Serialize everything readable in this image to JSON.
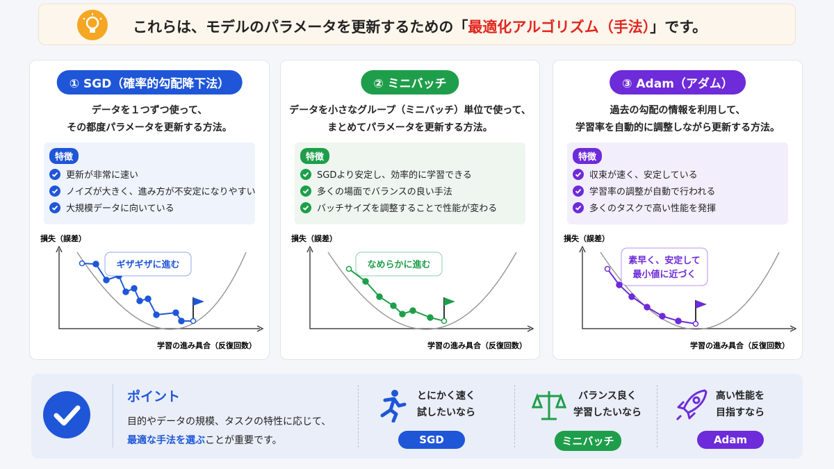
{
  "banner": {
    "before": "これらは、モデルのパラメータを更新するための「",
    "highlight": "最適化アルゴリズム（手法）",
    "after": "」です。"
  },
  "cards": [
    {
      "badge": "① SGD（確率的勾配降下法）",
      "description": [
        "データを１つずつ使って、",
        "その都度パラメータを更新する方法。"
      ],
      "feature_label": "特徴",
      "features": [
        "更新が非常に速い",
        "ノイズが大きく、進み方が不安定になりやすい",
        "大規模データに向いている"
      ],
      "y_label": "損失（誤差）",
      "x_label": "学習の進み具合（反復回数）",
      "bubble": [
        "ギザギザに進む"
      ]
    },
    {
      "badge": "② ミニバッチ",
      "description": [
        "データを小さなグループ（ミニバッチ）単位で使って、",
        "まとめてパラメータを更新する方法。"
      ],
      "feature_label": "特徴",
      "features": [
        "SGDより安定し、効率的に学習できる",
        "多くの場面でバランスの良い手法",
        "バッチサイズを調整することで性能が変わる"
      ],
      "y_label": "損失（誤差）",
      "x_label": "学習の進み具合（反復回数）",
      "bubble": [
        "なめらかに進む"
      ]
    },
    {
      "badge": "③ Adam（アダム）",
      "description": [
        "過去の勾配の情報を利用して、",
        "学習率を自動的に調整しながら更新する方法。"
      ],
      "feature_label": "特徴",
      "features": [
        "収束が速く、安定している",
        "学習率の調整が自動で行われる",
        "多くのタスクで高い性能を発揮"
      ],
      "y_label": "損失（誤差）",
      "x_label": "学習の進み具合（反復回数）",
      "bubble": [
        "素早く、安定して",
        "最小値に近づく"
      ]
    }
  ],
  "point": {
    "title": "ポイント",
    "line1": "目的やデータの規模、タスクの特性に応じて、",
    "highlight": "最適な手法を選ぶ",
    "line2_rest": "ことが重要です。"
  },
  "recommendations": [
    {
      "text": [
        "とにかく速く",
        "試したいなら"
      ],
      "tag": "SGD"
    },
    {
      "text": [
        "バランス良く",
        "学習したいなら"
      ],
      "tag": "ミニバッチ"
    },
    {
      "text": [
        "高い性能を",
        "目指すなら"
      ],
      "tag": "Adam"
    }
  ]
}
